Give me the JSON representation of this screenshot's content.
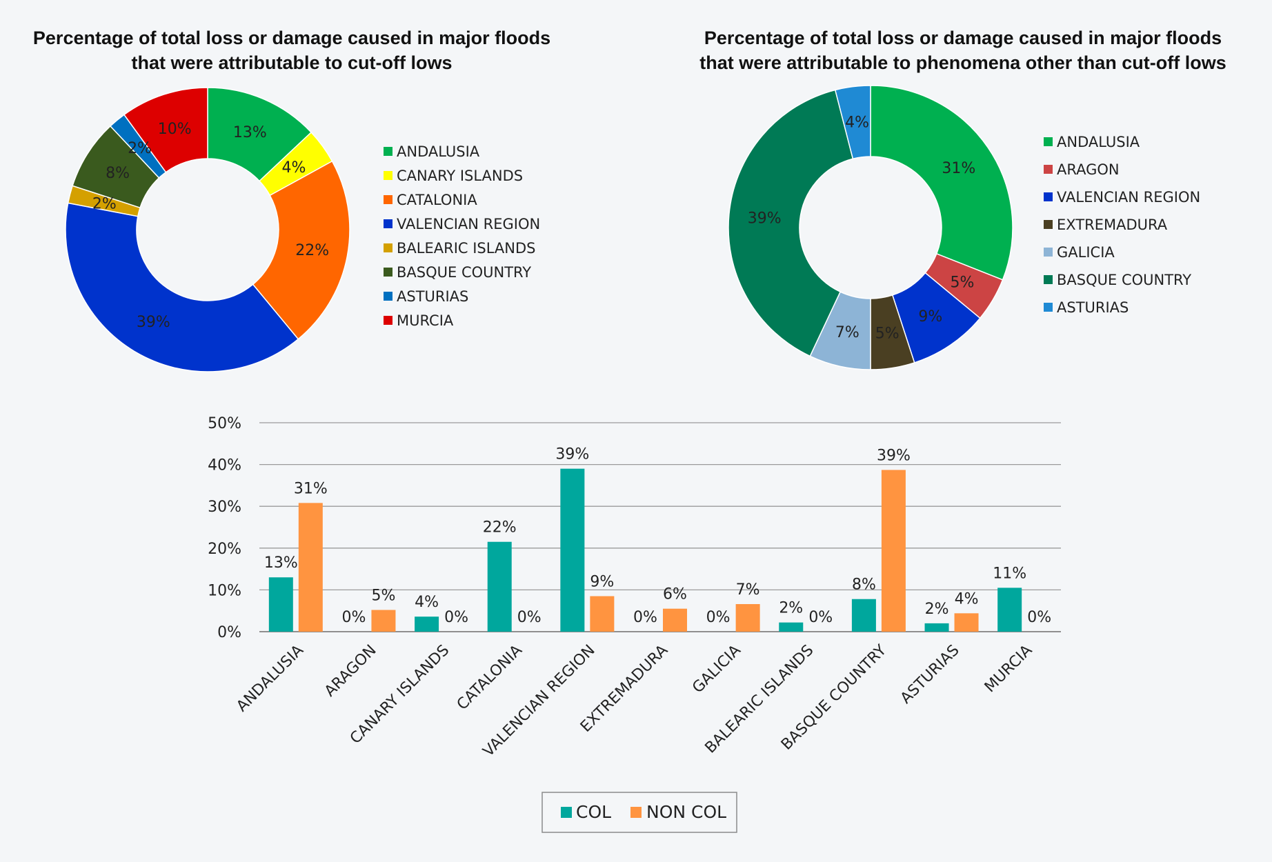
{
  "chart_data": [
    {
      "type": "pie",
      "variant": "donut",
      "title_lines": [
        "Percentage of total loss or damage caused in major floods",
        "that were attributable to cut-off lows"
      ],
      "legend_position": "right",
      "slices": [
        {
          "label": "ANDALUSIA",
          "value": 13,
          "text": "13%",
          "color": "#00b050"
        },
        {
          "label": "CANARY ISLANDS",
          "value": 4,
          "text": "4%",
          "color": "#ffff00"
        },
        {
          "label": "CATALONIA",
          "value": 22,
          "text": "22%",
          "color": "#ff6600"
        },
        {
          "label": "VALENCIAN REGION",
          "value": 39,
          "text": "39%",
          "color": "#0033cc"
        },
        {
          "label": "BALEARIC ISLANDS",
          "value": 2,
          "text": "2%",
          "color": "#d4a000"
        },
        {
          "label": "BASQUE COUNTRY",
          "value": 8,
          "text": "8%",
          "color": "#3a5a1e"
        },
        {
          "label": "ASTURIAS",
          "value": 2,
          "text": "2%",
          "color": "#0070c0"
        },
        {
          "label": "MURCIA",
          "value": 10,
          "text": "10%",
          "color": "#dd0000"
        }
      ]
    },
    {
      "type": "pie",
      "variant": "donut",
      "title_lines": [
        "Percentage of total loss or damage caused in major floods",
        "that were attributable to phenomena other than cut-off lows"
      ],
      "legend_position": "right",
      "slices": [
        {
          "label": "ANDALUSIA",
          "value": 31,
          "text": "31%",
          "color": "#00b050"
        },
        {
          "label": "ARAGON",
          "value": 5,
          "text": "5%",
          "color": "#cc4444"
        },
        {
          "label": "VALENCIAN REGION",
          "value": 9,
          "text": "9%",
          "color": "#0033cc"
        },
        {
          "label": "EXTREMADURA",
          "value": 5,
          "text": "5%",
          "color": "#4a3f22"
        },
        {
          "label": "GALICIA",
          "value": 7,
          "text": "7%",
          "color": "#8db4d6"
        },
        {
          "label": "BASQUE COUNTRY",
          "value": 39,
          "text": "39%",
          "color": "#007a55"
        },
        {
          "label": "ASTURIAS",
          "value": 4,
          "text": "4%",
          "color": "#1f8ad4"
        }
      ]
    },
    {
      "type": "bar",
      "categories": [
        "ANDALUSIA",
        "ARAGON",
        "CANARY ISLANDS",
        "CATALONIA",
        "VALENCIAN REGION",
        "EXTREMADURA",
        "GALICIA",
        "BALEARIC ISLANDS",
        "BASQUE COUNTRY",
        "ASTURIAS",
        "MURCIA"
      ],
      "series": [
        {
          "name": "COL",
          "color": "#00a79d",
          "values": [
            13,
            0,
            3.6,
            21.5,
            39,
            0,
            0,
            2.2,
            7.8,
            2,
            10.5
          ],
          "labels": [
            "13%",
            "0%",
            "4%",
            "22%",
            "39%",
            "0%",
            "0%",
            "2%",
            "8%",
            "2%",
            "11%"
          ]
        },
        {
          "name": "NON COL",
          "color": "#ff9440",
          "values": [
            30.8,
            5.2,
            0,
            0,
            8.5,
            5.5,
            6.6,
            0,
            38.7,
            4.4,
            0
          ],
          "labels": [
            "31%",
            "5%",
            "0%",
            "0%",
            "9%",
            "6%",
            "7%",
            "0%",
            "39%",
            "4%",
            "0%"
          ]
        }
      ],
      "ylim": [
        0,
        50
      ],
      "yticks": [
        "0%",
        "10%",
        "20%",
        "30%",
        "40%",
        "50%"
      ],
      "grid": true,
      "legend_position": "bottom"
    }
  ]
}
